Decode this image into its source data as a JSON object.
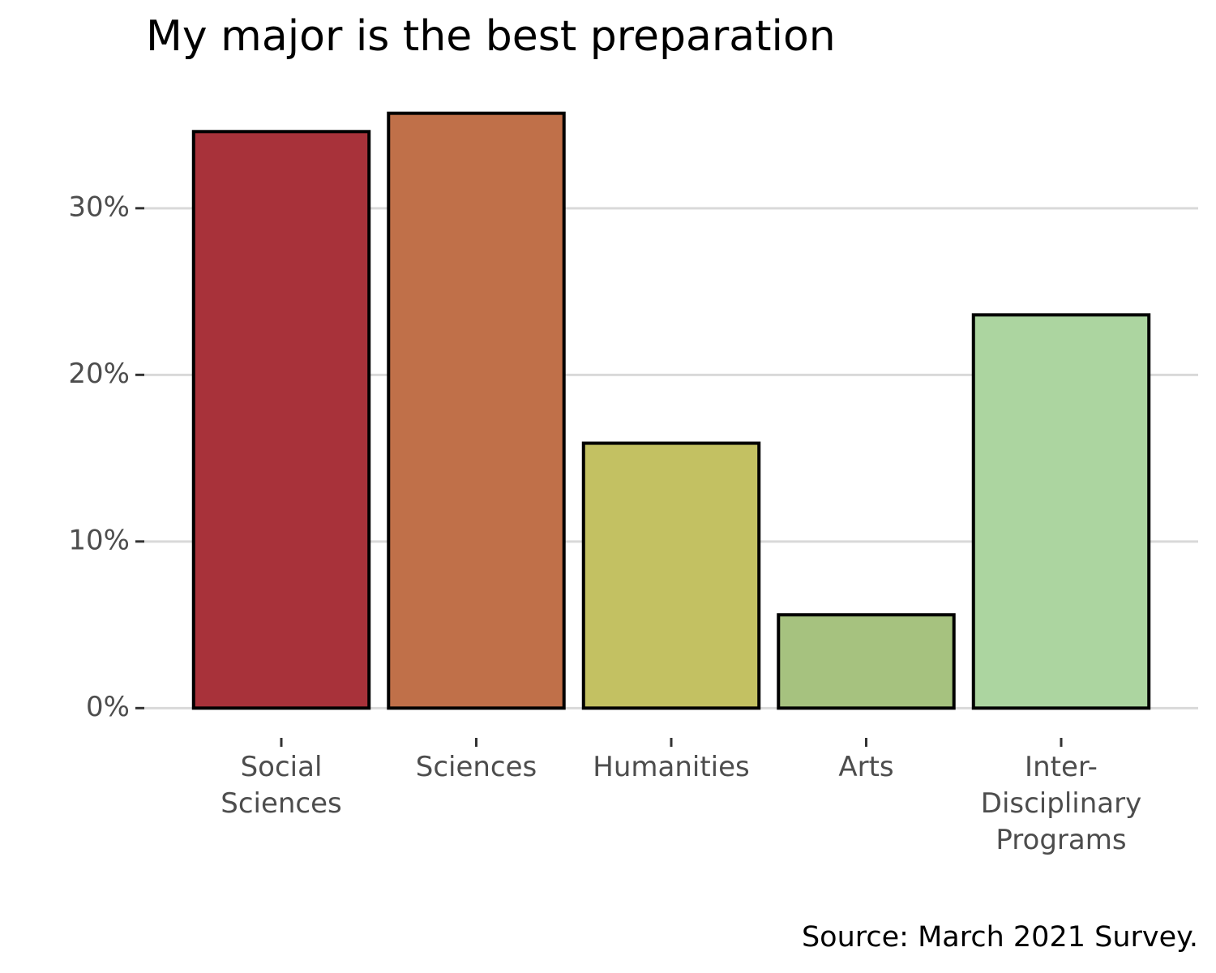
{
  "chart_data": {
    "type": "bar",
    "title": "My major is the best preparation",
    "caption": "Source: March 2021 Survey.",
    "categories": [
      "Social\nSciences",
      "Sciences",
      "Humanities",
      "Arts",
      "Inter-\nDisciplinary\nPrograms"
    ],
    "values": [
      34.6,
      35.7,
      15.9,
      5.6,
      23.6
    ],
    "colors": [
      "#a8323a",
      "#c07049",
      "#c3c162",
      "#a6c27f",
      "#acd5a0"
    ],
    "ylim": [
      -1.785,
      37.485
    ],
    "yticks": [
      {
        "value": 0,
        "label": "0%"
      },
      {
        "value": 10,
        "label": "10%"
      },
      {
        "value": 20,
        "label": "20%"
      },
      {
        "value": 30,
        "label": "30%"
      }
    ],
    "grid": true
  }
}
